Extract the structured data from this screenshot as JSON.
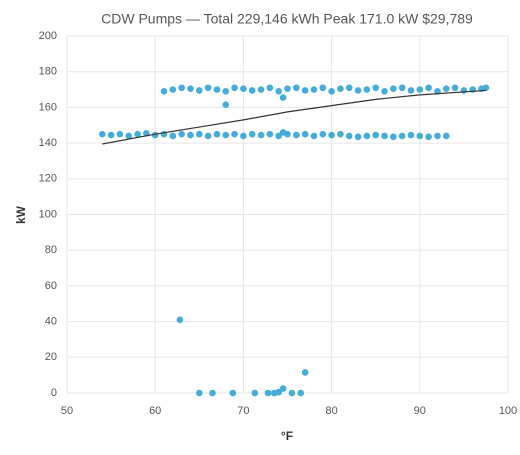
{
  "chart_data": {
    "type": "scatter",
    "title": "CDW Pumps — Total 229,146 kWh Peak 171.0 kW $29,789",
    "x_label": "°F",
    "y_label": "kW",
    "color": "#45acd9",
    "x": [
      61,
      62,
      63,
      64,
      65,
      66,
      67,
      68,
      69,
      70,
      71,
      72,
      73,
      74,
      75,
      76,
      77,
      78,
      79,
      80,
      81,
      82,
      83,
      84,
      85,
      86,
      87,
      88,
      89,
      90,
      91,
      92,
      93,
      94,
      95,
      96,
      97,
      97.5,
      54,
      55,
      56,
      57,
      58,
      59,
      60,
      61,
      62,
      63,
      64,
      65,
      66,
      67,
      68,
      69,
      70,
      71,
      72,
      73,
      74,
      75,
      76,
      77,
      78,
      79,
      80,
      81,
      82,
      83,
      84,
      85,
      86,
      87,
      88,
      89,
      90,
      91,
      92,
      93,
      68,
      74.5,
      74.5,
      62.8,
      77,
      65,
      66.5,
      68.8,
      71.3,
      72.8,
      73.5,
      74,
      74.5,
      75.5,
      76.5
    ],
    "y": [
      169,
      170,
      171,
      170.5,
      169.5,
      171,
      170,
      169,
      171,
      170.5,
      169.5,
      170,
      171,
      169,
      170.5,
      171,
      169.5,
      170,
      171,
      169,
      170.5,
      171,
      169.5,
      170,
      171,
      169,
      170.5,
      171,
      169.5,
      170,
      171,
      169,
      170.5,
      171,
      169.5,
      170,
      170.5,
      171,
      145,
      144.5,
      145,
      144,
      145,
      145.5,
      144.5,
      145,
      144,
      145,
      144.5,
      145,
      144,
      145,
      144.5,
      145,
      144,
      145,
      144.5,
      145,
      144,
      145,
      144.5,
      145,
      144,
      145,
      144.5,
      145,
      144,
      143.5,
      144,
      144.5,
      144,
      143.5,
      144,
      144.5,
      144,
      143.5,
      144,
      144,
      161.5,
      165.5,
      146,
      41,
      11.5,
      0,
      0,
      0,
      0,
      0,
      0,
      0.5,
      2.5,
      0,
      0
    ],
    "trendline": {
      "color": "#333333",
      "x": [
        54,
        60,
        65,
        70,
        75,
        80,
        85,
        90,
        97.5
      ],
      "y": [
        139.5,
        145,
        149,
        153,
        157.5,
        161,
        164.5,
        167,
        169.5
      ]
    },
    "xlim": [
      50,
      100
    ],
    "xticks": [
      50,
      60,
      70,
      80,
      90,
      100
    ],
    "ylim": [
      0,
      200
    ],
    "yticks": [
      0,
      20,
      40,
      60,
      80,
      100,
      120,
      140,
      160,
      180,
      200
    ],
    "grid": true
  }
}
